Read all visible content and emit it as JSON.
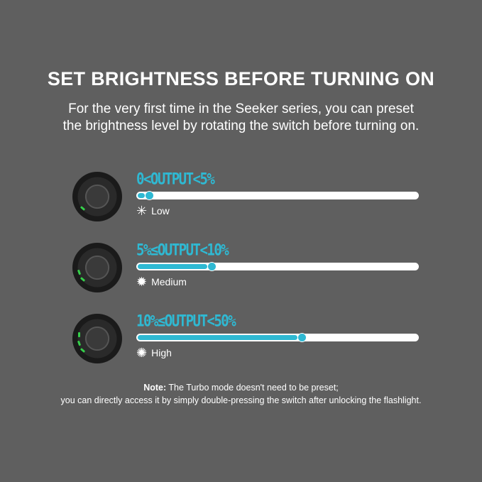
{
  "title": "SET BRIGHTNESS BEFORE TURNING ON",
  "subtitle_lines": [
    "For the very first time in the Seeker series, you can preset",
    "the brightness level by rotating the switch before turning on."
  ],
  "levels": [
    {
      "range": "0<OUTPUT<5%",
      "mode": "Low",
      "icon": "small-sun-icon",
      "slider_fraction": 0.03,
      "green_leds": 1
    },
    {
      "range": "5%≤OUTPUT<10%",
      "mode": "Medium",
      "icon": "medium-sun-icon",
      "slider_fraction": 0.25,
      "green_leds": 2
    },
    {
      "range": "10%≤OUTPUT<50%",
      "mode": "High",
      "icon": "large-sun-icon",
      "slider_fraction": 0.57,
      "green_leds": 3
    }
  ],
  "note": {
    "label": "Note:",
    "line1": " The Turbo mode doesn't need to be preset;",
    "line2": "you can directly access it by simply double-pressing the switch after unlocking the flashlight."
  },
  "colors": {
    "accent": "#2fb9d3",
    "background": "#5f5f5f",
    "led": "#35d04a"
  }
}
